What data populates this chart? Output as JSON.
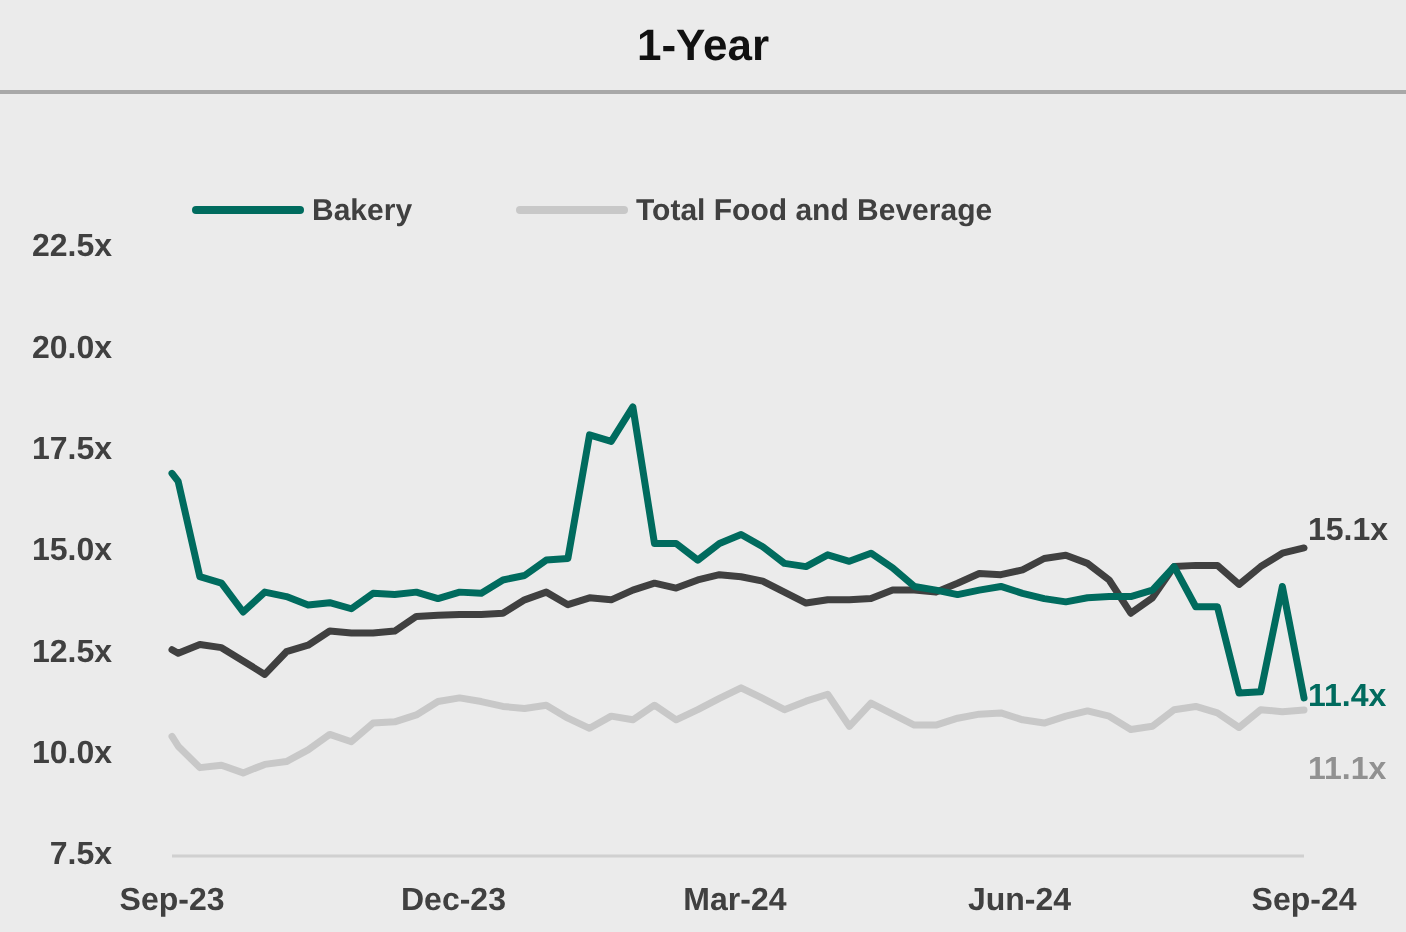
{
  "chart_data": {
    "type": "line",
    "title": "1-Year",
    "x": [
      "2023-09-15",
      "2023-09-17",
      "2023-09-24",
      "2023-10-01",
      "2023-10-08",
      "2023-10-15",
      "2023-10-22",
      "2023-10-29",
      "2023-11-05",
      "2023-11-12",
      "2023-11-19",
      "2023-11-26",
      "2023-12-03",
      "2023-12-10",
      "2023-12-17",
      "2023-12-24",
      "2023-12-31",
      "2024-01-07",
      "2024-01-14",
      "2024-01-21",
      "2024-01-28",
      "2024-02-04",
      "2024-02-11",
      "2024-02-18",
      "2024-02-25",
      "2024-03-03",
      "2024-03-10",
      "2024-03-17",
      "2024-03-24",
      "2024-03-31",
      "2024-04-07",
      "2024-04-14",
      "2024-04-21",
      "2024-04-28",
      "2024-05-05",
      "2024-05-12",
      "2024-05-19",
      "2024-05-26",
      "2024-06-02",
      "2024-06-09",
      "2024-06-16",
      "2024-06-23",
      "2024-06-30",
      "2024-07-07",
      "2024-07-14",
      "2024-07-21",
      "2024-07-28",
      "2024-08-04",
      "2024-08-11",
      "2024-08-18",
      "2024-08-25",
      "2024-09-01",
      "2024-09-08",
      "2024-09-15"
    ],
    "series": [
      {
        "name": "Total Food and Beverage",
        "color": "#c8c8c8",
        "values": [
          10.45,
          10.21,
          9.68,
          9.74,
          9.55,
          9.76,
          9.83,
          10.12,
          10.5,
          10.32,
          10.78,
          10.81,
          10.98,
          11.31,
          11.4,
          11.31,
          11.19,
          11.14,
          11.22,
          10.9,
          10.65,
          10.95,
          10.86,
          11.22,
          10.86,
          11.11,
          11.39,
          11.65,
          11.39,
          11.11,
          11.32,
          11.49,
          10.7,
          11.27,
          11.0,
          10.73,
          10.73,
          10.9,
          11.0,
          11.03,
          10.86,
          10.78,
          10.95,
          11.08,
          10.95,
          10.62,
          10.7,
          11.11,
          11.19,
          11.03,
          10.67,
          11.11,
          11.06,
          11.1
        ],
        "value_labels": [
          null,
          null,
          null,
          null,
          null,
          null,
          null,
          null,
          null,
          null,
          null,
          null,
          null,
          null,
          null,
          null,
          null,
          null,
          null,
          null,
          null,
          null,
          null,
          null,
          null,
          null,
          null,
          null,
          null,
          null,
          null,
          null,
          null,
          null,
          null,
          null,
          null,
          null,
          null,
          null,
          null,
          null,
          null,
          null,
          null,
          null,
          null,
          null,
          null,
          null,
          null,
          null,
          null,
          "11.1x"
        ]
      },
      {
        "color": "#404040",
        "values": [
          12.59,
          12.5,
          12.72,
          12.64,
          12.31,
          11.98,
          12.54,
          12.7,
          13.05,
          13.0,
          13.0,
          13.05,
          13.41,
          13.44,
          13.46,
          13.46,
          13.49,
          13.82,
          14.01,
          13.7,
          13.87,
          13.82,
          14.06,
          14.23,
          14.11,
          14.31,
          14.44,
          14.39,
          14.28,
          14.01,
          13.74,
          13.82,
          13.82,
          13.85,
          14.06,
          14.06,
          14.01,
          14.23,
          14.47,
          14.44,
          14.56,
          14.84,
          14.92,
          14.72,
          14.31,
          13.49,
          13.87,
          14.64,
          14.67,
          14.67,
          14.2,
          14.64,
          14.97,
          15.1
        ],
        "value_labels": [
          null,
          null,
          null,
          null,
          null,
          null,
          null,
          null,
          null,
          null,
          null,
          null,
          null,
          null,
          null,
          null,
          null,
          null,
          null,
          null,
          null,
          null,
          null,
          null,
          null,
          null,
          null,
          null,
          null,
          null,
          null,
          null,
          null,
          null,
          null,
          null,
          null,
          null,
          null,
          null,
          null,
          null,
          null,
          null,
          null,
          null,
          null,
          null,
          null,
          null,
          null,
          null,
          null,
          "15.1x"
        ]
      },
      {
        "name": "Bakery",
        "color": "#006b5e",
        "values": [
          16.94,
          16.74,
          14.39,
          14.23,
          13.52,
          14.01,
          13.9,
          13.69,
          13.75,
          13.6,
          13.98,
          13.95,
          14.01,
          13.85,
          14.01,
          13.98,
          14.31,
          14.42,
          14.8,
          14.84,
          17.89,
          17.73,
          18.58,
          15.21,
          15.21,
          14.8,
          15.21,
          15.43,
          15.13,
          14.72,
          14.64,
          14.93,
          14.77,
          14.97,
          14.61,
          14.15,
          14.06,
          13.95,
          14.06,
          14.15,
          13.98,
          13.85,
          13.77,
          13.87,
          13.9,
          13.9,
          14.06,
          14.64,
          13.65,
          13.65,
          11.52,
          11.55,
          14.15,
          11.4
        ],
        "value_labels": [
          null,
          null,
          null,
          null,
          null,
          null,
          null,
          null,
          null,
          null,
          null,
          null,
          null,
          null,
          null,
          null,
          null,
          null,
          null,
          null,
          null,
          null,
          null,
          null,
          null,
          null,
          null,
          null,
          null,
          null,
          null,
          null,
          null,
          null,
          null,
          null,
          null,
          null,
          null,
          null,
          null,
          null,
          null,
          null,
          null,
          null,
          null,
          null,
          null,
          null,
          null,
          null,
          null,
          "11.4x"
        ]
      }
    ],
    "xlim": [
      "2023-09-15",
      "2024-09-15"
    ],
    "xticks": [
      {
        "value": "2023-09-15",
        "label": "Sep-23"
      },
      {
        "value": "2023-12-15",
        "label": "Dec-23"
      },
      {
        "value": "2024-03-15",
        "label": "Mar-24"
      },
      {
        "value": "2024-06-15",
        "label": "Jun-24"
      },
      {
        "value": "2024-09-15",
        "label": "Sep-24"
      }
    ],
    "ylim": [
      7.5,
      22.5
    ],
    "yticks": [
      {
        "value": 7.5,
        "label": "7.5x"
      },
      {
        "value": 10,
        "label": "10.0x"
      },
      {
        "value": 12.5,
        "label": "12.5x"
      },
      {
        "value": 15,
        "label": "15.0x"
      },
      {
        "value": 17.5,
        "label": "17.5x"
      },
      {
        "value": 20,
        "label": "20.0x"
      },
      {
        "value": 22.5,
        "label": "22.5x"
      }
    ],
    "grid": false,
    "legend": "top",
    "marker": "none",
    "line_style": "solid"
  }
}
